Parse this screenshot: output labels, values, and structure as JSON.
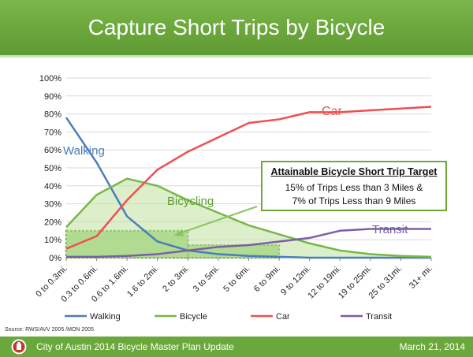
{
  "header": {
    "title": "Capture Short Trips by Bicycle"
  },
  "chart_data": {
    "type": "line",
    "categories": [
      "0 to 0.3mi.",
      "0.3 to 0.6mi.",
      "0.6 to 1.6mi.",
      "1.6 to 2mi.",
      "2 to 3mi.",
      "3 to 5mi.",
      "5 to 6mi.",
      "6 to 9mi.",
      "9 to 12mi.",
      "12 to 19mi.",
      "19 to 25mi.",
      "25 to 31mi.",
      "31+ mi."
    ],
    "y_ticks": [
      "0%",
      "10%",
      "20%",
      "30%",
      "40%",
      "50%",
      "60%",
      "70%",
      "80%",
      "90%",
      "100%"
    ],
    "ylim": [
      0,
      100
    ],
    "series": [
      {
        "name": "Walking",
        "color": "#4a7ebb",
        "values": [
          78,
          53,
          23,
          9,
          4,
          2,
          1,
          0.5,
          0,
          0,
          0,
          0,
          0
        ]
      },
      {
        "name": "Bicycle",
        "color": "#7ab648",
        "values": [
          17,
          35,
          44,
          40,
          32,
          25,
          18,
          13,
          8,
          4,
          2,
          1,
          0.5
        ]
      },
      {
        "name": "Car",
        "color": "#f04e4e",
        "values": [
          5,
          12,
          32,
          49,
          59,
          67,
          75,
          77,
          81,
          81,
          82,
          83,
          84
        ]
      },
      {
        "name": "Transit",
        "color": "#7b5ea7",
        "values": [
          0.5,
          0.5,
          1,
          2,
          4,
          6,
          7,
          9,
          11,
          15,
          16,
          16,
          16
        ]
      }
    ],
    "annotations": {
      "walking": "Walking",
      "bicycling": "Bicycling",
      "car": "Car",
      "transit": "Transit"
    },
    "target_boxes": [
      {
        "from_category": 0,
        "to_category": 4,
        "value": 15
      },
      {
        "from_category": 4,
        "to_category": 7,
        "value": 7
      }
    ],
    "legend_position": "bottom"
  },
  "callout": {
    "title": "Attainable Bicycle Short Trip Target",
    "line1": "15% of Trips Less than 3 Miles &",
    "line2": "7% of Trips Less than 9 Miles"
  },
  "source": "Source: RWS/AVV 2005 /MON 2005",
  "footer": {
    "text": "City of Austin 2014 Bicycle Master Plan Update",
    "date": "March 21, 2014"
  }
}
